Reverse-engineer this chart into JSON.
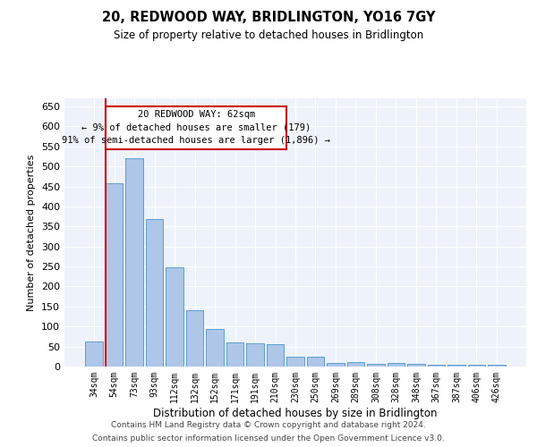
{
  "title": "20, REDWOOD WAY, BRIDLINGTON, YO16 7GY",
  "subtitle": "Size of property relative to detached houses in Bridlington",
  "xlabel": "Distribution of detached houses by size in Bridlington",
  "ylabel": "Number of detached properties",
  "categories": [
    "34sqm",
    "54sqm",
    "73sqm",
    "93sqm",
    "112sqm",
    "132sqm",
    "152sqm",
    "171sqm",
    "191sqm",
    "210sqm",
    "230sqm",
    "250sqm",
    "269sqm",
    "289sqm",
    "308sqm",
    "328sqm",
    "348sqm",
    "367sqm",
    "387sqm",
    "406sqm",
    "426sqm"
  ],
  "values": [
    62,
    457,
    521,
    369,
    248,
    140,
    94,
    60,
    57,
    55,
    24,
    24,
    9,
    12,
    6,
    8,
    6,
    4,
    4,
    5,
    4
  ],
  "bar_color": "#aec6e8",
  "bar_edge_color": "#5a9fd4",
  "background_color": "#eef3fb",
  "grid_color": "#ffffff",
  "annotation_box_color": "#cc0000",
  "property_line_color": "#cc0000",
  "property_bin_index": 1,
  "annotation_title": "20 REDWOOD WAY: 62sqm",
  "annotation_line1": "← 9% of detached houses are smaller (179)",
  "annotation_line2": "91% of semi-detached houses are larger (1,896) →",
  "ylim": [
    0,
    670
  ],
  "yticks": [
    0,
    50,
    100,
    150,
    200,
    250,
    300,
    350,
    400,
    450,
    500,
    550,
    600,
    650
  ],
  "footer_line1": "Contains HM Land Registry data © Crown copyright and database right 2024.",
  "footer_line2": "Contains public sector information licensed under the Open Government Licence v3.0."
}
